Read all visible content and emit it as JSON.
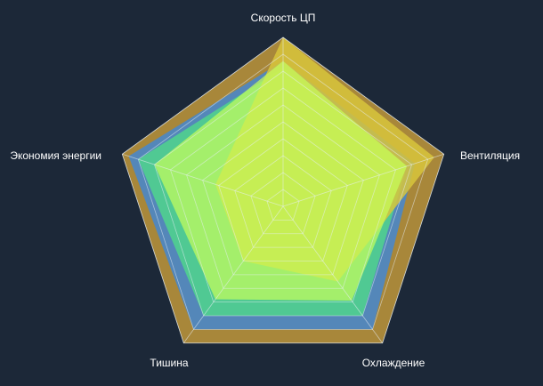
{
  "chart_data": {
    "type": "radar",
    "axes": [
      "Скорость ЦП",
      "Вентиляция",
      "Охлаждение",
      "Тишина",
      "Экономия энергии"
    ],
    "rmax": 100,
    "rings": 10,
    "series": [
      {
        "values": [
          100,
          100,
          100,
          100,
          100
        ],
        "color": "#a8873a",
        "opacity": 1
      },
      {
        "values": [
          86,
          82,
          90,
          90,
          96
        ],
        "color": "#4a87c8",
        "opacity": 0.9
      },
      {
        "values": [
          82,
          77,
          80,
          80,
          90
        ],
        "color": "#4fd98a",
        "opacity": 0.8
      },
      {
        "values": [
          100,
          94,
          55,
          40,
          42
        ],
        "color": "#d8c53c",
        "opacity": 0.85
      },
      {
        "values": [
          86,
          77,
          69,
          68,
          80
        ],
        "color": "#c8ff5a",
        "opacity": 0.7
      }
    ],
    "grid": true,
    "colors": {
      "grid": "#e8eef5",
      "background": "#1c2838",
      "text": "#ffffff"
    }
  }
}
